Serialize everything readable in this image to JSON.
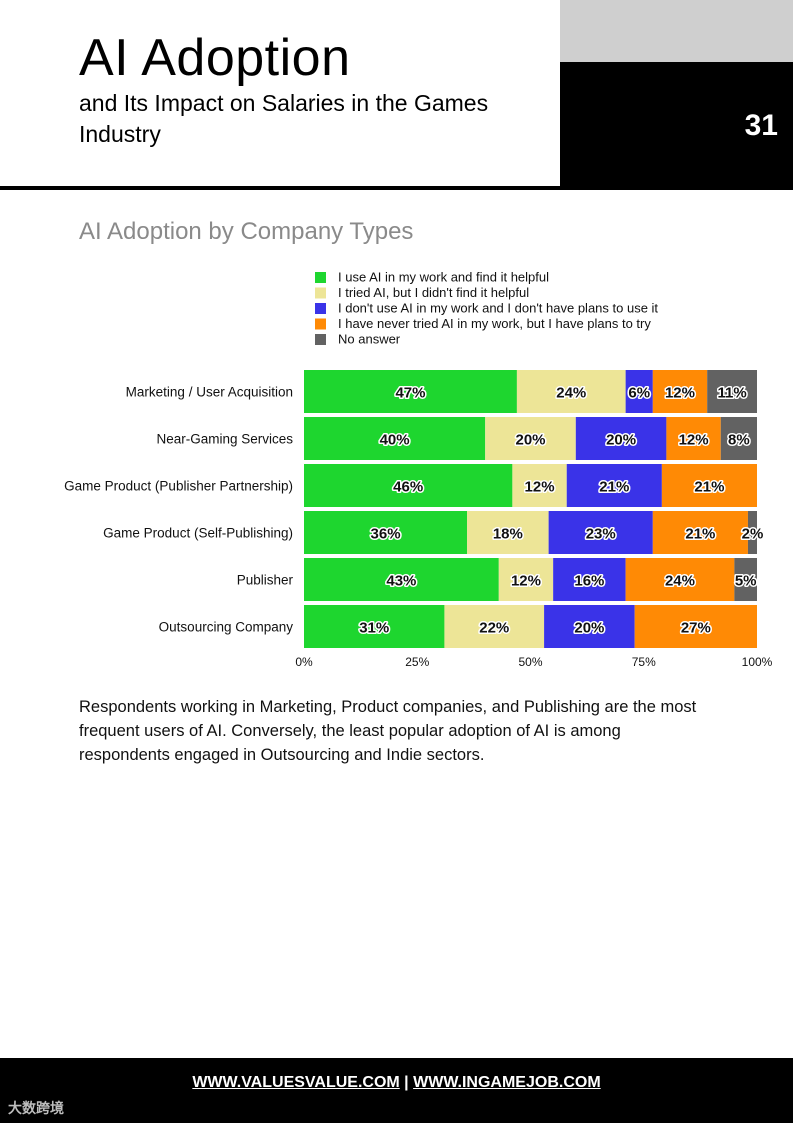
{
  "header": {
    "title": "AI Adoption",
    "subtitle": "and Its Impact on Salaries in the Games Industry",
    "page_number": "31"
  },
  "section_title": "AI Adoption by Company Types",
  "colors": {
    "green": "#1ed62f",
    "yellow": "#ede597",
    "blue": "#3a33e8",
    "orange": "#ff8a05",
    "grey": "#626262"
  },
  "chart_data": {
    "type": "bar",
    "orientation": "horizontal",
    "stacked": true,
    "normalized": true,
    "title": "AI Adoption by Company Types",
    "categories": [
      "Marketing / User Acquisition",
      "Near-Gaming Services",
      "Game Product (Publisher Partnership)",
      "Game Product (Self-Publishing)",
      "Publisher",
      "Outsourcing Company"
    ],
    "series": [
      {
        "name": "I use AI in my work and find it helpful",
        "color": "#1ed62f",
        "values": [
          47,
          40,
          46,
          36,
          43,
          31
        ]
      },
      {
        "name": "I tried AI, but I didn't find it helpful",
        "color": "#ede597",
        "values": [
          24,
          20,
          12,
          18,
          12,
          22
        ]
      },
      {
        "name": "I don't use AI in my work and I don't have plans to use it",
        "color": "#3a33e8",
        "values": [
          6,
          20,
          21,
          23,
          16,
          20
        ]
      },
      {
        "name": "I have never tried AI in my work, but I have plans to try",
        "color": "#ff8a05",
        "values": [
          12,
          12,
          21,
          21,
          24,
          27
        ]
      },
      {
        "name": "No answer",
        "color": "#626262",
        "values": [
          11,
          8,
          0,
          2,
          5,
          0
        ]
      }
    ],
    "value_suffix": "%",
    "xticks": [
      "0%",
      "25%",
      "50%",
      "75%",
      "100%"
    ],
    "xlim": [
      0,
      100
    ],
    "legend_position": "top"
  },
  "description": "Respondents working in Marketing, Product companies, and Publishing are the most frequent users of AI. Conversely, the least popular adoption of AI is among respondents engaged in Outsourcing and Indie sectors.",
  "footer": {
    "link1": "WWW.VALUESVALUE.COM",
    "separator": "|",
    "link2": "WWW.INGAMEJOB.COM",
    "watermark": "大数跨境"
  }
}
